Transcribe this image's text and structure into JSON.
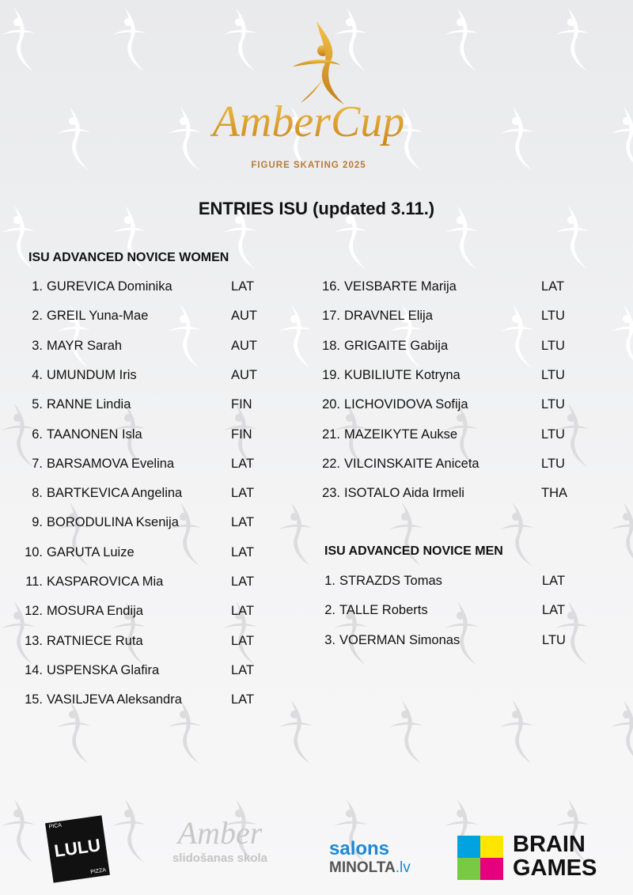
{
  "logo": {
    "title": "AmberCup",
    "subtitle": "FIGURE SKATING 2025"
  },
  "heading": "ENTRIES ISU (updated 3.11.)",
  "women": {
    "title": "ISU ADVANCED NOVICE WOMEN",
    "entries": [
      {
        "no": "1.",
        "name": "GUREVICA Dominika",
        "country": "LAT"
      },
      {
        "no": "2.",
        "name": "GREIL Yuna-Mae",
        "country": "AUT"
      },
      {
        "no": "3.",
        "name": "MAYR Sarah",
        "country": "AUT"
      },
      {
        "no": "4.",
        "name": "UMUNDUM Iris",
        "country": "AUT"
      },
      {
        "no": "5.",
        "name": "RANNE Lindia",
        "country": "FIN"
      },
      {
        "no": "6.",
        "name": "TAANONEN Isla",
        "country": "FIN"
      },
      {
        "no": "7.",
        "name": "BARSAMOVA Evelina",
        "country": "LAT"
      },
      {
        "no": "8.",
        "name": "BARTKEVICA Angelina",
        "country": "LAT"
      },
      {
        "no": "9.",
        "name": "BORODULINA Ksenija",
        "country": "LAT"
      },
      {
        "no": "10.",
        "name": "GARUTA Luize",
        "country": "LAT"
      },
      {
        "no": "11.",
        "name": "KASPAROVICA Mia",
        "country": "LAT"
      },
      {
        "no": "12.",
        "name": "MOSURA Endija",
        "country": "LAT"
      },
      {
        "no": "13.",
        "name": "RATNIECE Ruta",
        "country": "LAT"
      },
      {
        "no": "14.",
        "name": "USPENSKA Glafira",
        "country": "LAT"
      },
      {
        "no": "15.",
        "name": "VASILJEVA Aleksandra",
        "country": "LAT"
      },
      {
        "no": "16.",
        "name": "VEISBARTE Marija",
        "country": "LAT"
      },
      {
        "no": "17.",
        "name": "DRAVNEL Elija",
        "country": "LTU"
      },
      {
        "no": "18.",
        "name": "GRIGAITE Gabija",
        "country": "LTU"
      },
      {
        "no": "19.",
        "name": "KUBILIUTE Kotryna",
        "country": "LTU"
      },
      {
        "no": "20.",
        "name": "LICHOVIDOVA Sofija",
        "country": "LTU"
      },
      {
        "no": "21.",
        "name": "MAZEIKYTE Aukse",
        "country": "LTU"
      },
      {
        "no": "22.",
        "name": "VILCINSKAITE Aniceta",
        "country": "LTU"
      },
      {
        "no": "23.",
        "name": "ISOTALO Aida Irmeli",
        "country": "THA"
      }
    ]
  },
  "men": {
    "title": "ISU ADVANCED NOVICE MEN",
    "entries": [
      {
        "no": "1.",
        "name": "STRAZDS Tomas",
        "country": "LAT"
      },
      {
        "no": "2.",
        "name": "TALLE Roberts",
        "country": "LAT"
      },
      {
        "no": "3.",
        "name": "VOERMAN Simonas",
        "country": "LTU"
      }
    ]
  },
  "sponsors": {
    "lulu": {
      "main": "LULU",
      "top": "PICA",
      "bottom": "PIZZA"
    },
    "amber": {
      "main": "Amber",
      "sub": "slidošanas skola"
    },
    "minolta": {
      "top": "salons",
      "main": "MINOLTA",
      "tld": ".lv"
    },
    "brain": {
      "line1": "BRAIN",
      "line2": "GAMES"
    }
  },
  "colors": {
    "gold": "#d89a24",
    "brainBlue": "#00a3e0",
    "brainYellow": "#ffe600",
    "brainGreen": "#7ac943",
    "brainPink": "#e5007e",
    "minoltaBlue": "#1e88d0"
  }
}
